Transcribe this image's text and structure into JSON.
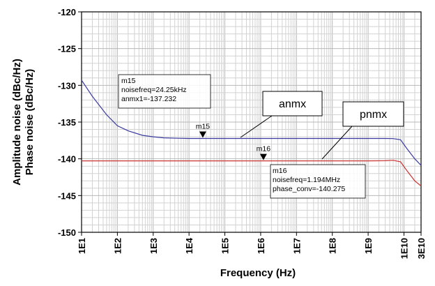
{
  "chart_data": {
    "type": "line",
    "xlabel": "Frequency (Hz)",
    "ylabel_lines": [
      "Amplitude noise (dBc/Hz)",
      "Phase noise (dBc/Hz)"
    ],
    "xscale": "log",
    "xlim": [
      10,
      30000000000
    ],
    "ylim": [
      -150,
      -120
    ],
    "grid": true,
    "x_tick_labels": [
      "1E1",
      "1E2",
      "1E3",
      "1E4",
      "1E5",
      "1E6",
      "1E7",
      "1E8",
      "1E9",
      "1E10",
      "3E10"
    ],
    "x_ticks": [
      10,
      100,
      1000,
      10000,
      100000,
      1000000,
      10000000,
      100000000,
      1000000000,
      10000000000,
      30000000000
    ],
    "y_tick_labels": [
      "-120",
      "-125",
      "-130",
      "-135",
      "-140",
      "-145",
      "-150"
    ],
    "y_ticks": [
      -120,
      -125,
      -130,
      -135,
      -140,
      -145,
      -150
    ],
    "series": [
      {
        "name": "anmx",
        "color": "#3a3aa0",
        "x": [
          10,
          20,
          50,
          100,
          200,
          500,
          1000,
          2000,
          5000,
          10000,
          100000,
          1000000,
          10000000,
          100000000,
          1000000000,
          3000000000,
          5000000000,
          8000000000,
          12000000000,
          20000000000,
          30000000000
        ],
        "y": [
          -129.3,
          -131.5,
          -134.0,
          -135.5,
          -136.2,
          -136.8,
          -137.0,
          -137.15,
          -137.2,
          -137.232,
          -137.232,
          -137.232,
          -137.232,
          -137.232,
          -137.232,
          -137.232,
          -137.25,
          -137.4,
          -138.6,
          -140.0,
          -140.9
        ]
      },
      {
        "name": "pnmx",
        "color": "#cc3030",
        "x": [
          10,
          100,
          1000,
          10000,
          100000,
          1000000,
          10000000,
          100000000,
          1000000000,
          3000000000,
          5000000000,
          8000000000,
          12000000000,
          20000000000,
          30000000000
        ],
        "y": [
          -140.275,
          -140.275,
          -140.275,
          -140.275,
          -140.275,
          -140.275,
          -140.275,
          -140.275,
          -140.275,
          -140.26,
          -140.2,
          -140.4,
          -141.6,
          -143.0,
          -143.7
        ]
      }
    ],
    "markers": [
      {
        "label": "m15",
        "series": "anmx",
        "x": 24250,
        "y": -137.232,
        "text": [
          "m15",
          "noisefreq=24.25kHz",
          "anmx1=-137.232"
        ]
      },
      {
        "label": "m16",
        "series": "pnmx",
        "x": 1194000,
        "y": -140.275,
        "text": [
          "m16",
          "noisefreq=1.194MHz",
          "phase_conv=-140.275"
        ]
      }
    ],
    "callouts": [
      "anmx",
      "pnmx"
    ]
  }
}
